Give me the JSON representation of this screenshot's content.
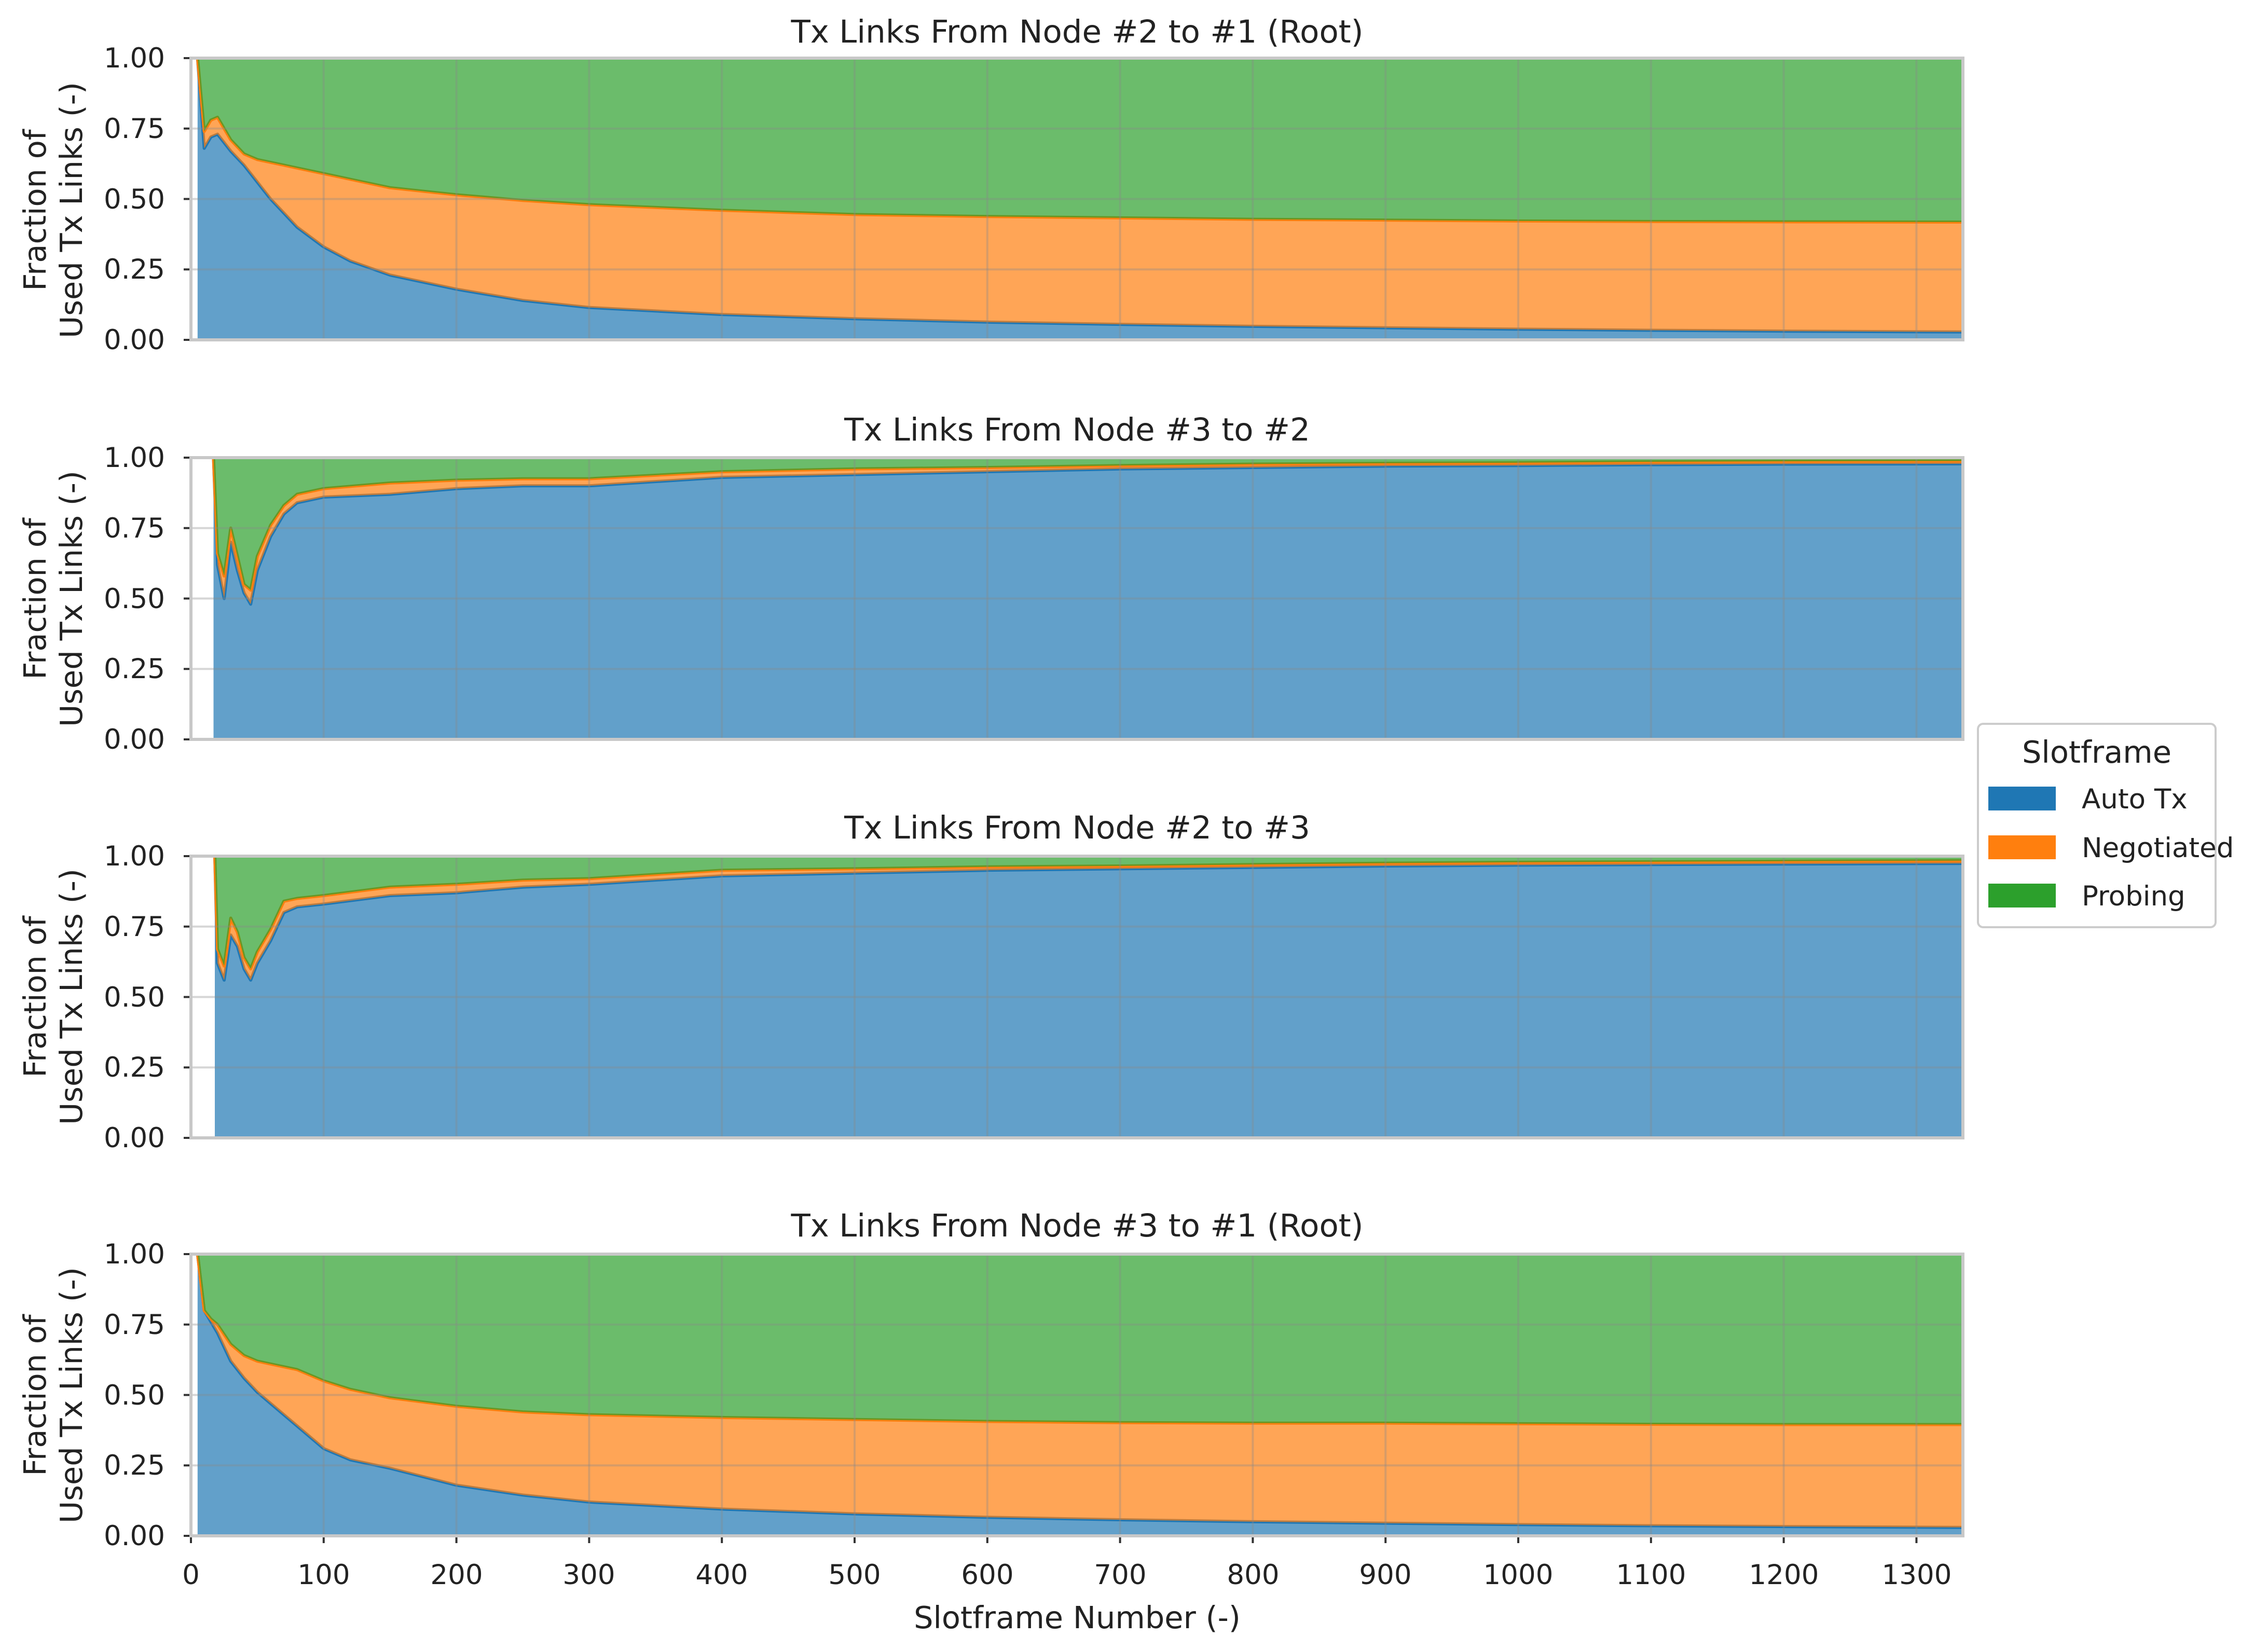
{
  "chart_data": {
    "type": "area",
    "stacked": true,
    "shared_x_axis": true,
    "xlabel": "Slotframe Number (-)",
    "xlim": [
      0,
      1335
    ],
    "x_ticks": [
      "0",
      "100",
      "200",
      "300",
      "400",
      "500",
      "600",
      "700",
      "800",
      "900",
      "1000",
      "1100",
      "1200",
      "1300"
    ],
    "y_ticks": [
      "0.00",
      "0.25",
      "0.50",
      "0.75",
      "1.00"
    ],
    "legend": {
      "title": "Slotframe",
      "placement": "center-right",
      "entries": [
        {
          "name": "Auto Tx",
          "color": "#1f77b4"
        },
        {
          "name": "Negotiated",
          "color": "#ff7f0e"
        },
        {
          "name": "Probing",
          "color": "#2ca02c"
        }
      ]
    },
    "panels": [
      {
        "title": "Tx Links From Node #2 to #1 (Root)",
        "ylabel_line1": "Fraction of",
        "ylabel_line2": "Used Tx Links (-)",
        "ylim": [
          0,
          1
        ],
        "x": [
          5,
          10,
          15,
          20,
          25,
          30,
          40,
          50,
          60,
          70,
          80,
          100,
          120,
          150,
          200,
          250,
          300,
          400,
          500,
          600,
          700,
          800,
          900,
          1000,
          1100,
          1200,
          1335
        ],
        "series": [
          {
            "name": "Auto Tx",
            "values": [
              1.0,
              0.68,
              0.72,
              0.73,
              0.7,
              0.67,
              0.62,
              0.56,
              0.5,
              0.45,
              0.4,
              0.33,
              0.28,
              0.23,
              0.18,
              0.14,
              0.115,
              0.09,
              0.075,
              0.063,
              0.055,
              0.048,
              0.043,
              0.038,
              0.034,
              0.031,
              0.028
            ]
          },
          {
            "name": "Negotiated",
            "values": [
              0.0,
              0.06,
              0.06,
              0.06,
              0.05,
              0.04,
              0.04,
              0.08,
              0.13,
              0.17,
              0.21,
              0.26,
              0.29,
              0.31,
              0.335,
              0.355,
              0.365,
              0.37,
              0.37,
              0.375,
              0.378,
              0.38,
              0.382,
              0.384,
              0.386,
              0.388,
              0.39
            ]
          },
          {
            "name": "Probing",
            "values": [
              0.0,
              0.26,
              0.22,
              0.21,
              0.25,
              0.29,
              0.34,
              0.36,
              0.37,
              0.38,
              0.39,
              0.41,
              0.43,
              0.46,
              0.485,
              0.505,
              0.52,
              0.54,
              0.555,
              0.562,
              0.567,
              0.572,
              0.575,
              0.578,
              0.58,
              0.581,
              0.582
            ]
          }
        ]
      },
      {
        "title": "Tx Links From Node #3 to #2",
        "ylabel_line1": "Fraction of",
        "ylabel_line2": "Used Tx Links (-)",
        "ylim": [
          0,
          1
        ],
        "x": [
          17,
          20,
          25,
          30,
          35,
          40,
          45,
          50,
          60,
          70,
          80,
          100,
          150,
          200,
          250,
          300,
          400,
          500,
          600,
          700,
          800,
          900,
          1000,
          1100,
          1200,
          1335
        ],
        "series": [
          {
            "name": "Auto Tx",
            "values": [
              1.0,
              0.62,
              0.5,
              0.7,
              0.6,
              0.52,
              0.48,
              0.6,
              0.72,
              0.8,
              0.84,
              0.86,
              0.87,
              0.89,
              0.9,
              0.9,
              0.93,
              0.94,
              0.95,
              0.96,
              0.965,
              0.97,
              0.972,
              0.975,
              0.977,
              0.978
            ]
          },
          {
            "name": "Negotiated",
            "values": [
              0.0,
              0.04,
              0.08,
              0.05,
              0.05,
              0.03,
              0.05,
              0.05,
              0.04,
              0.03,
              0.03,
              0.03,
              0.04,
              0.03,
              0.025,
              0.025,
              0.02,
              0.02,
              0.015,
              0.012,
              0.012,
              0.01,
              0.01,
              0.01,
              0.01,
              0.01
            ]
          },
          {
            "name": "Probing",
            "values": [
              0.0,
              0.34,
              0.42,
              0.25,
              0.35,
              0.45,
              0.47,
              0.35,
              0.24,
              0.17,
              0.13,
              0.11,
              0.09,
              0.08,
              0.075,
              0.075,
              0.05,
              0.04,
              0.035,
              0.028,
              0.023,
              0.02,
              0.018,
              0.015,
              0.013,
              0.012
            ]
          }
        ]
      },
      {
        "title": "Tx Links From Node #2 to #3",
        "ylabel_line1": "Fraction of",
        "ylabel_line2": "Used Tx Links (-)",
        "ylim": [
          0,
          1
        ],
        "x": [
          18,
          20,
          25,
          30,
          35,
          40,
          45,
          50,
          60,
          70,
          80,
          100,
          150,
          200,
          250,
          300,
          400,
          500,
          600,
          700,
          800,
          900,
          1000,
          1100,
          1200,
          1335
        ],
        "series": [
          {
            "name": "Auto Tx",
            "values": [
              1.0,
              0.62,
              0.56,
              0.72,
              0.68,
              0.6,
              0.56,
              0.62,
              0.7,
              0.8,
              0.82,
              0.83,
              0.86,
              0.87,
              0.89,
              0.9,
              0.93,
              0.94,
              0.95,
              0.955,
              0.96,
              0.965,
              0.968,
              0.97,
              0.972,
              0.974
            ]
          },
          {
            "name": "Negotiated",
            "values": [
              0.0,
              0.05,
              0.05,
              0.06,
              0.05,
              0.04,
              0.04,
              0.04,
              0.04,
              0.04,
              0.03,
              0.03,
              0.03,
              0.03,
              0.025,
              0.02,
              0.02,
              0.015,
              0.012,
              0.01,
              0.01,
              0.01,
              0.01,
              0.01,
              0.01,
              0.01
            ]
          },
          {
            "name": "Probing",
            "values": [
              0.0,
              0.33,
              0.39,
              0.22,
              0.27,
              0.36,
              0.4,
              0.34,
              0.26,
              0.16,
              0.15,
              0.14,
              0.11,
              0.1,
              0.085,
              0.08,
              0.05,
              0.045,
              0.038,
              0.035,
              0.03,
              0.025,
              0.022,
              0.02,
              0.018,
              0.016
            ]
          }
        ]
      },
      {
        "title": "Tx Links From Node #3 to #1 (Root)",
        "ylabel_line1": "Fraction of",
        "ylabel_line2": "Used Tx Links (-)",
        "ylim": [
          0,
          1
        ],
        "x": [
          5,
          10,
          15,
          20,
          30,
          40,
          50,
          60,
          80,
          100,
          120,
          150,
          200,
          250,
          300,
          400,
          500,
          600,
          700,
          800,
          900,
          1000,
          1100,
          1200,
          1335
        ],
        "series": [
          {
            "name": "Auto Tx",
            "values": [
              1.0,
              0.8,
              0.76,
              0.72,
              0.62,
              0.56,
              0.51,
              0.47,
              0.39,
              0.31,
              0.27,
              0.24,
              0.18,
              0.145,
              0.12,
              0.095,
              0.078,
              0.066,
              0.057,
              0.05,
              0.045,
              0.04,
              0.036,
              0.033,
              0.03
            ]
          },
          {
            "name": "Negotiated",
            "values": [
              0.0,
              0.0,
              0.01,
              0.03,
              0.06,
              0.08,
              0.11,
              0.14,
              0.2,
              0.24,
              0.25,
              0.25,
              0.28,
              0.295,
              0.31,
              0.325,
              0.335,
              0.34,
              0.345,
              0.35,
              0.355,
              0.358,
              0.36,
              0.362,
              0.365
            ]
          },
          {
            "name": "Probing",
            "values": [
              0.0,
              0.2,
              0.23,
              0.25,
              0.32,
              0.36,
              0.38,
              0.39,
              0.41,
              0.45,
              0.48,
              0.51,
              0.54,
              0.56,
              0.57,
              0.58,
              0.587,
              0.594,
              0.598,
              0.6,
              0.6,
              0.602,
              0.604,
              0.605,
              0.605
            ]
          }
        ]
      }
    ]
  }
}
